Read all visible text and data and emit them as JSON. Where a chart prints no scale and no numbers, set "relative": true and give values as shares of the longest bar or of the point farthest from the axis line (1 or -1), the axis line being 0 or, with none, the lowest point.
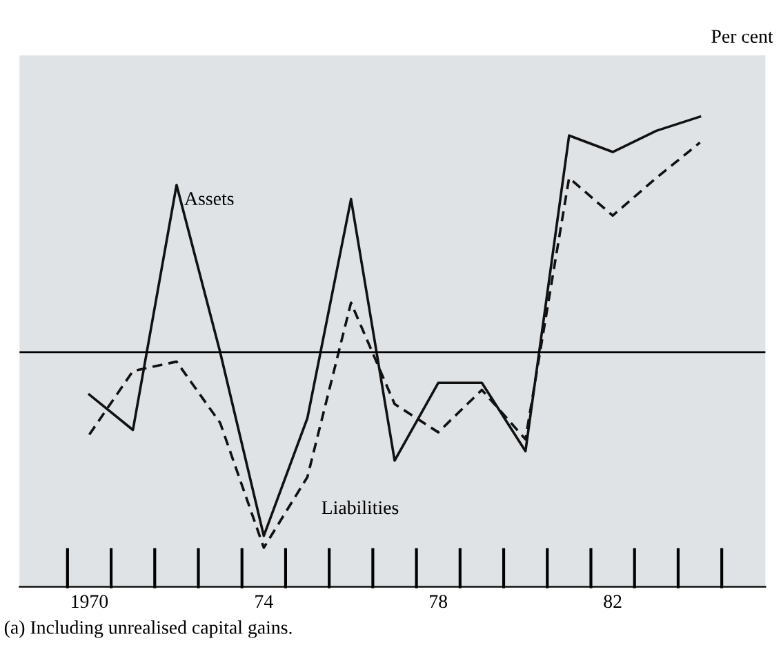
{
  "chart_data": {
    "type": "line",
    "relative": true,
    "ylabel": "Per cent",
    "x": [
      1970,
      1971,
      1972,
      1973,
      1974,
      1975,
      1976,
      1977,
      1978,
      1979,
      1980,
      1981,
      1982,
      1983,
      1984
    ],
    "xlim": [
      1968.4,
      1985.5
    ],
    "xticks": [
      {
        "value": 1970,
        "label": "1970"
      },
      {
        "value": 1974,
        "label": "74"
      },
      {
        "value": 1978,
        "label": "78"
      },
      {
        "value": 1982,
        "label": "82"
      }
    ],
    "series": [
      {
        "name": "Assets",
        "color": "#111111",
        "line_style": "solid",
        "values": [
          -0.18,
          -0.33,
          0.71,
          0,
          -0.78,
          -0.28,
          0.65,
          -0.46,
          -0.13,
          -0.13,
          -0.42,
          0.92,
          0.85,
          0.94,
          1
        ]
      },
      {
        "name": "Liabilities",
        "color": "#111111",
        "line_style": "dashed",
        "values": [
          -0.35,
          -0.08,
          -0.04,
          -0.3,
          -0.83,
          -0.53,
          0.21,
          -0.22,
          -0.34,
          -0.16,
          -0.37,
          0.74,
          0.58,
          0.74,
          0.89
        ]
      }
    ],
    "annotations": [
      "(a) Including unrealised capital gains."
    ],
    "grid": false,
    "legend": false,
    "marker": "none"
  }
}
